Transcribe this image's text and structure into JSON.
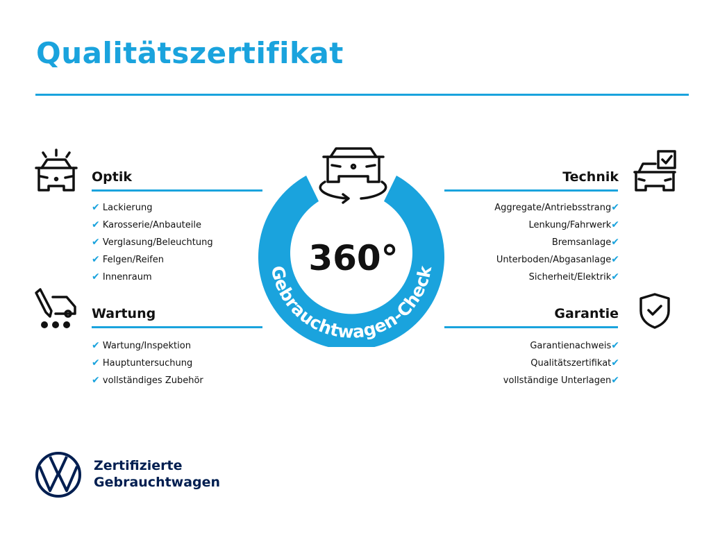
{
  "title": "Qualitätszertifikat",
  "center": {
    "big": "360°",
    "ring_text": "Gebrauchtwagen-Check"
  },
  "sections": {
    "optik": {
      "heading": "Optik",
      "items": [
        "Lackierung",
        "Karosserie/Anbauteile",
        "Verglasung/Beleuchtung",
        "Felgen/Reifen",
        "Innenraum"
      ]
    },
    "wartung": {
      "heading": "Wartung",
      "items": [
        "Wartung/Inspektion",
        "Hauptuntersuchung",
        "vollständiges Zubehör"
      ]
    },
    "technik": {
      "heading": "Technik",
      "items": [
        "Aggregate/Antriebsstrang",
        "Lenkung/Fahrwerk",
        "Bremsanlage",
        "Unterboden/Abgasanlage",
        "Sicherheit/Elektrik"
      ]
    },
    "garantie": {
      "heading": "Garantie",
      "items": [
        "Garantienachweis",
        "Qualitätszertifikat",
        "vollständige Unterlagen"
      ]
    }
  },
  "check_glyph": "✔",
  "brand": {
    "line1": "Zertifizierte",
    "line2": "Gebrauchtwagen"
  },
  "colors": {
    "accent": "#1aa3dd",
    "brand_navy": "#001e50",
    "text": "#111111"
  }
}
